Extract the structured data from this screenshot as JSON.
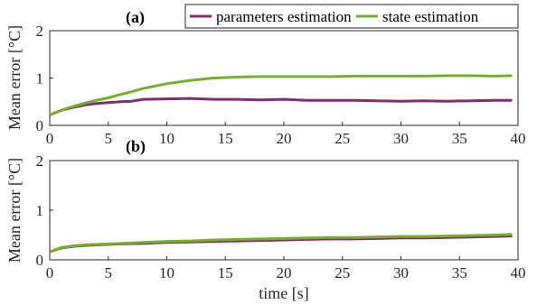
{
  "colors": {
    "param": "#7E2F6E",
    "state": "#77AC30",
    "axis": "#262626"
  },
  "legend": {
    "items": [
      "parameters estimation",
      "state estimation"
    ],
    "placement": "top-right"
  },
  "chart_data": [
    {
      "panel_label": "(a)",
      "type": "line",
      "ylabel": "Mean error [°C]",
      "xlabel": "",
      "xlim": [
        0,
        40
      ],
      "ylim": [
        0,
        2
      ],
      "xticks": [
        "0",
        "5",
        "10",
        "15",
        "20",
        "25",
        "30",
        "35",
        "40"
      ],
      "yticks": [
        "0",
        "1",
        "2"
      ],
      "grid": false,
      "series": [
        {
          "name": "parameters estimation",
          "color": "#7E2F6E",
          "x": [
            0,
            1,
            2,
            3,
            4,
            5,
            6,
            7,
            8,
            10,
            12,
            14,
            16,
            18,
            20,
            22,
            24,
            26,
            28,
            30,
            32,
            34,
            36,
            38,
            39.5
          ],
          "y": [
            0.22,
            0.32,
            0.38,
            0.43,
            0.46,
            0.48,
            0.5,
            0.51,
            0.55,
            0.56,
            0.57,
            0.55,
            0.55,
            0.54,
            0.55,
            0.53,
            0.53,
            0.53,
            0.52,
            0.51,
            0.52,
            0.51,
            0.52,
            0.53,
            0.53
          ]
        },
        {
          "name": "state estimation",
          "color": "#77AC30",
          "x": [
            0,
            1,
            2,
            3,
            4,
            5,
            6,
            7,
            8,
            10,
            12,
            14,
            16,
            18,
            20,
            22,
            24,
            26,
            28,
            30,
            32,
            34,
            36,
            38,
            39.5
          ],
          "y": [
            0.22,
            0.32,
            0.4,
            0.47,
            0.53,
            0.58,
            0.65,
            0.71,
            0.78,
            0.88,
            0.95,
            1.0,
            1.02,
            1.03,
            1.03,
            1.03,
            1.03,
            1.04,
            1.04,
            1.04,
            1.04,
            1.05,
            1.05,
            1.04,
            1.05
          ]
        }
      ]
    },
    {
      "panel_label": "(b)",
      "type": "line",
      "ylabel": "Mean error [°C]",
      "xlabel": "time [s]",
      "xlim": [
        0,
        40
      ],
      "ylim": [
        0,
        2
      ],
      "xticks": [
        "0",
        "5",
        "10",
        "15",
        "20",
        "25",
        "30",
        "35",
        "40"
      ],
      "yticks": [
        "0",
        "1",
        "2"
      ],
      "grid": false,
      "series": [
        {
          "name": "parameters estimation",
          "color": "#7E2F6E",
          "x": [
            0,
            1,
            2,
            3,
            4,
            5,
            6,
            8,
            10,
            12,
            14,
            16,
            18,
            20,
            22,
            24,
            26,
            28,
            30,
            32,
            34,
            36,
            38,
            39.5
          ],
          "y": [
            0.16,
            0.24,
            0.27,
            0.29,
            0.3,
            0.31,
            0.32,
            0.33,
            0.35,
            0.36,
            0.37,
            0.38,
            0.39,
            0.4,
            0.41,
            0.42,
            0.42,
            0.43,
            0.44,
            0.44,
            0.45,
            0.46,
            0.47,
            0.48
          ]
        },
        {
          "name": "state estimation",
          "color": "#77AC30",
          "x": [
            0,
            1,
            2,
            3,
            4,
            5,
            6,
            8,
            10,
            12,
            14,
            16,
            18,
            20,
            22,
            24,
            26,
            28,
            30,
            32,
            34,
            36,
            38,
            39.5
          ],
          "y": [
            0.16,
            0.25,
            0.28,
            0.3,
            0.31,
            0.32,
            0.33,
            0.35,
            0.37,
            0.38,
            0.4,
            0.41,
            0.42,
            0.43,
            0.44,
            0.45,
            0.45,
            0.46,
            0.47,
            0.47,
            0.48,
            0.49,
            0.5,
            0.51
          ]
        }
      ]
    }
  ]
}
